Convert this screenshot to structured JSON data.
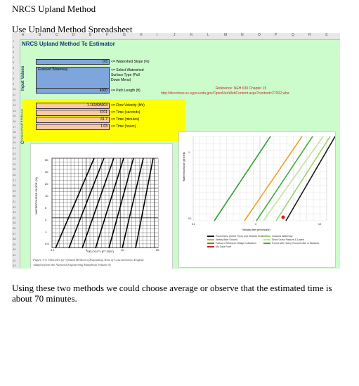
{
  "doc": {
    "title": "NRCS Upland Method",
    "subtitle": "Use Upland Method Spreadsheet",
    "paragraph": "Using these two methods we could choose average or observe that the estimated time is about 70 minutes."
  },
  "sheet": {
    "title": "NRCS Upland Method Tc Estimator",
    "input_label": "Input Values",
    "computed_label": "Computed Values",
    "col_headers": [
      "A",
      "B",
      "C",
      "D",
      "E",
      "F",
      "G",
      "H",
      "I",
      "J",
      "K",
      "L",
      "M",
      "N",
      "O",
      "P",
      "Q",
      "R",
      "S"
    ],
    "row_numbers": [
      "1",
      "2",
      "3",
      "4",
      "5",
      "6",
      "7",
      "8",
      "9",
      "10",
      "11",
      "12",
      "13",
      "14",
      "15",
      "16",
      "17",
      "18",
      "19",
      "20",
      "21",
      "22",
      "23",
      "24",
      "25",
      "26",
      "27",
      "28",
      "29",
      "30",
      "31",
      "32",
      "33",
      "34",
      "35",
      "36",
      "37",
      "38",
      "39",
      "40",
      "41",
      "42",
      "43"
    ],
    "inputs": {
      "slope_value": "0.6",
      "slope_label": "<= Watershed Slope (%)",
      "surface_value": "Grassed Waterway",
      "surface_label_1": "<= Select Watershed",
      "surface_label_2": "Surface Type (Pull",
      "surface_label_3": "Down Menu)",
      "path_value": "4300",
      "path_label": "<= Path Length (ft)"
    },
    "computed": {
      "velocity_value": "1.161895004",
      "velocity_label": "<= Flow Velocity (ft/s)",
      "seconds_value": "3701",
      "seconds_label": "<= Time (seconds)",
      "minutes_value": "61.7",
      "minutes_label": "<= Time (minutes)",
      "hours_value": "1.03",
      "hours_label": "<= Time (hours)"
    },
    "reference": {
      "title": "Reference: NEH 630 Chapter 15",
      "url": "http://directives.sc.egov.usda.gov/OpenNonWebContent.aspx?content=27002.wba"
    },
    "left_chart": {
      "ylabel": "WATERCOURSE SLOPE (%)",
      "xlabel": "VELOCITY (FT./SEC)",
      "y_ticks": [
        "50",
        "30",
        "20",
        "10",
        "5",
        "2",
        "1",
        "0.5"
      ],
      "x_ticks": [
        "0.1",
        "1",
        "10",
        "20"
      ],
      "caption_1": "Figure 3-4. Velocities for Upland Method of Estimating Time of Concentration–English",
      "caption_2": "Adapted from the National Engineering Handbook Volume 4)",
      "colors": {
        "ink": "#111111"
      }
    },
    "right_chart": {
      "ylabel": "Watershed Slope (percent)",
      "xlabel": "Velocity (feet per second)",
      "x_ticks": [
        "0.1",
        "1",
        "10"
      ],
      "y_ticks": [
        "1",
        "0.1"
      ],
      "legend": [
        {
          "name": "Paved Area (Sheet Flow) and Shallow Gutter Flow",
          "color": "#1a1a1a"
        },
        {
          "name": "Nearly Bare Ground",
          "color": "#f0a020"
        },
        {
          "name": "Fallow or Minimum Tillage Cultivation",
          "color": "#30a030"
        },
        {
          "name": "My Data Point",
          "color": "#d02020"
        },
        {
          "name": "Grassed Waterway",
          "color": "#a0d070"
        },
        {
          "name": "Short Grass Pasture & Lawns",
          "color": "#c8e0a0"
        },
        {
          "name": "Forest with Heavy Ground Litter & Meadow",
          "color": "#40b040"
        }
      ]
    }
  }
}
